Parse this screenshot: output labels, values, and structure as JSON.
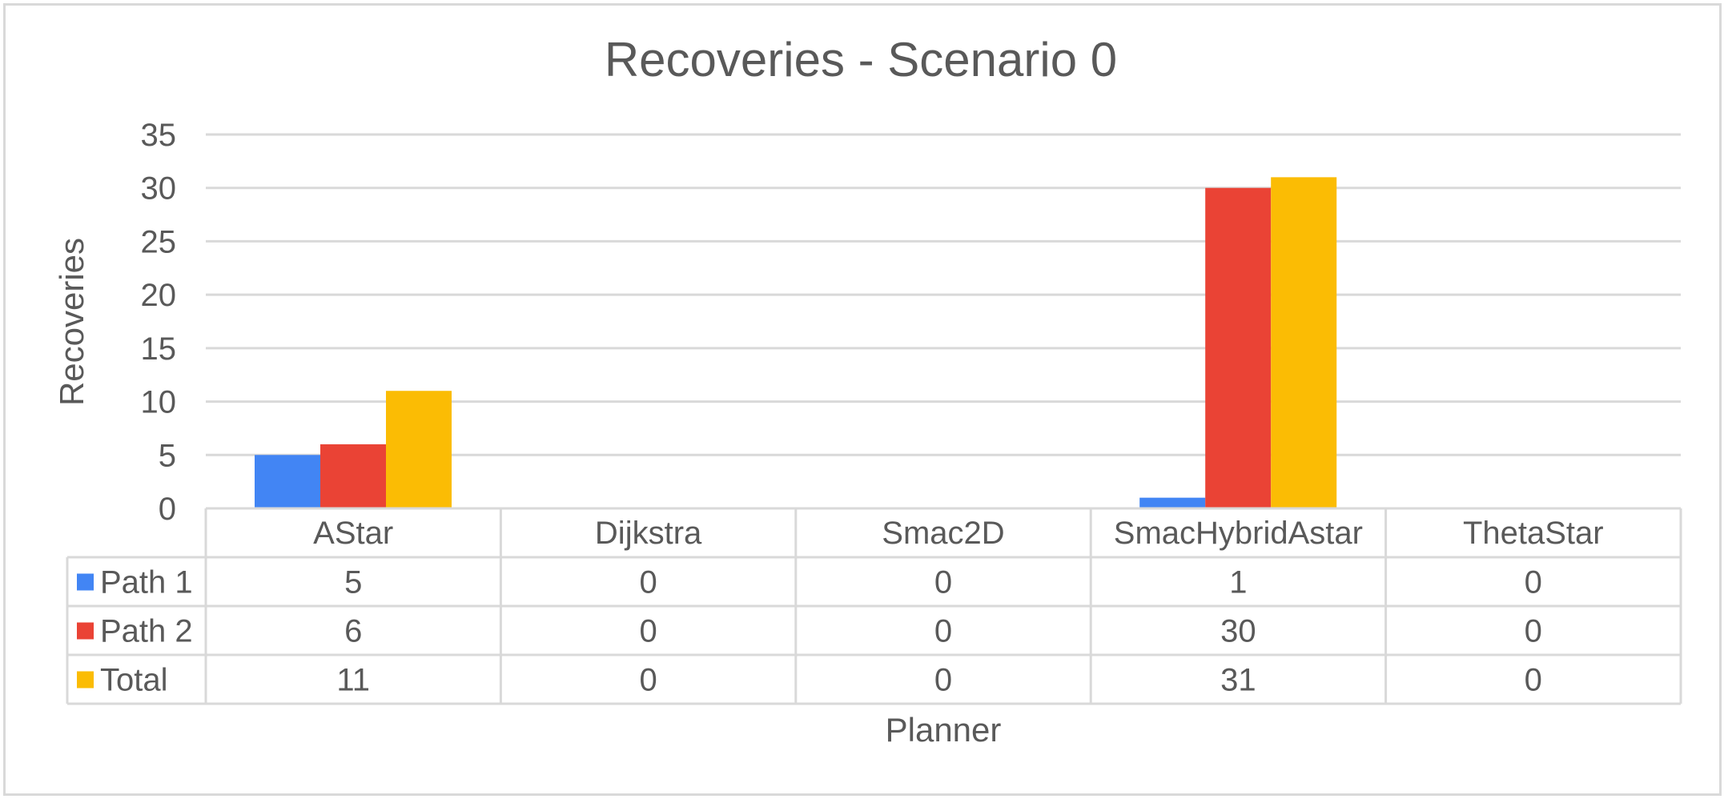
{
  "chart_data": {
    "type": "bar",
    "title": "Recoveries - Scenario 0",
    "xlabel": "Planner",
    "ylabel": "Recoveries",
    "categories": [
      "AStar",
      "Dijkstra",
      "Smac2D",
      "SmacHybridAstar",
      "ThetaStar"
    ],
    "series": [
      {
        "name": "Path 1",
        "values": [
          5,
          0,
          0,
          1,
          0
        ],
        "color": "#4285f4"
      },
      {
        "name": "Path 2",
        "values": [
          6,
          0,
          0,
          30,
          0
        ],
        "color": "#ea4335"
      },
      {
        "name": "Total",
        "values": [
          11,
          0,
          0,
          31,
          0
        ],
        "color": "#fbbc04"
      }
    ],
    "ylim": [
      0,
      35
    ],
    "yticks": [
      0,
      5,
      10,
      15,
      20,
      25,
      30,
      35
    ],
    "grid": true,
    "legend": "data-table"
  }
}
